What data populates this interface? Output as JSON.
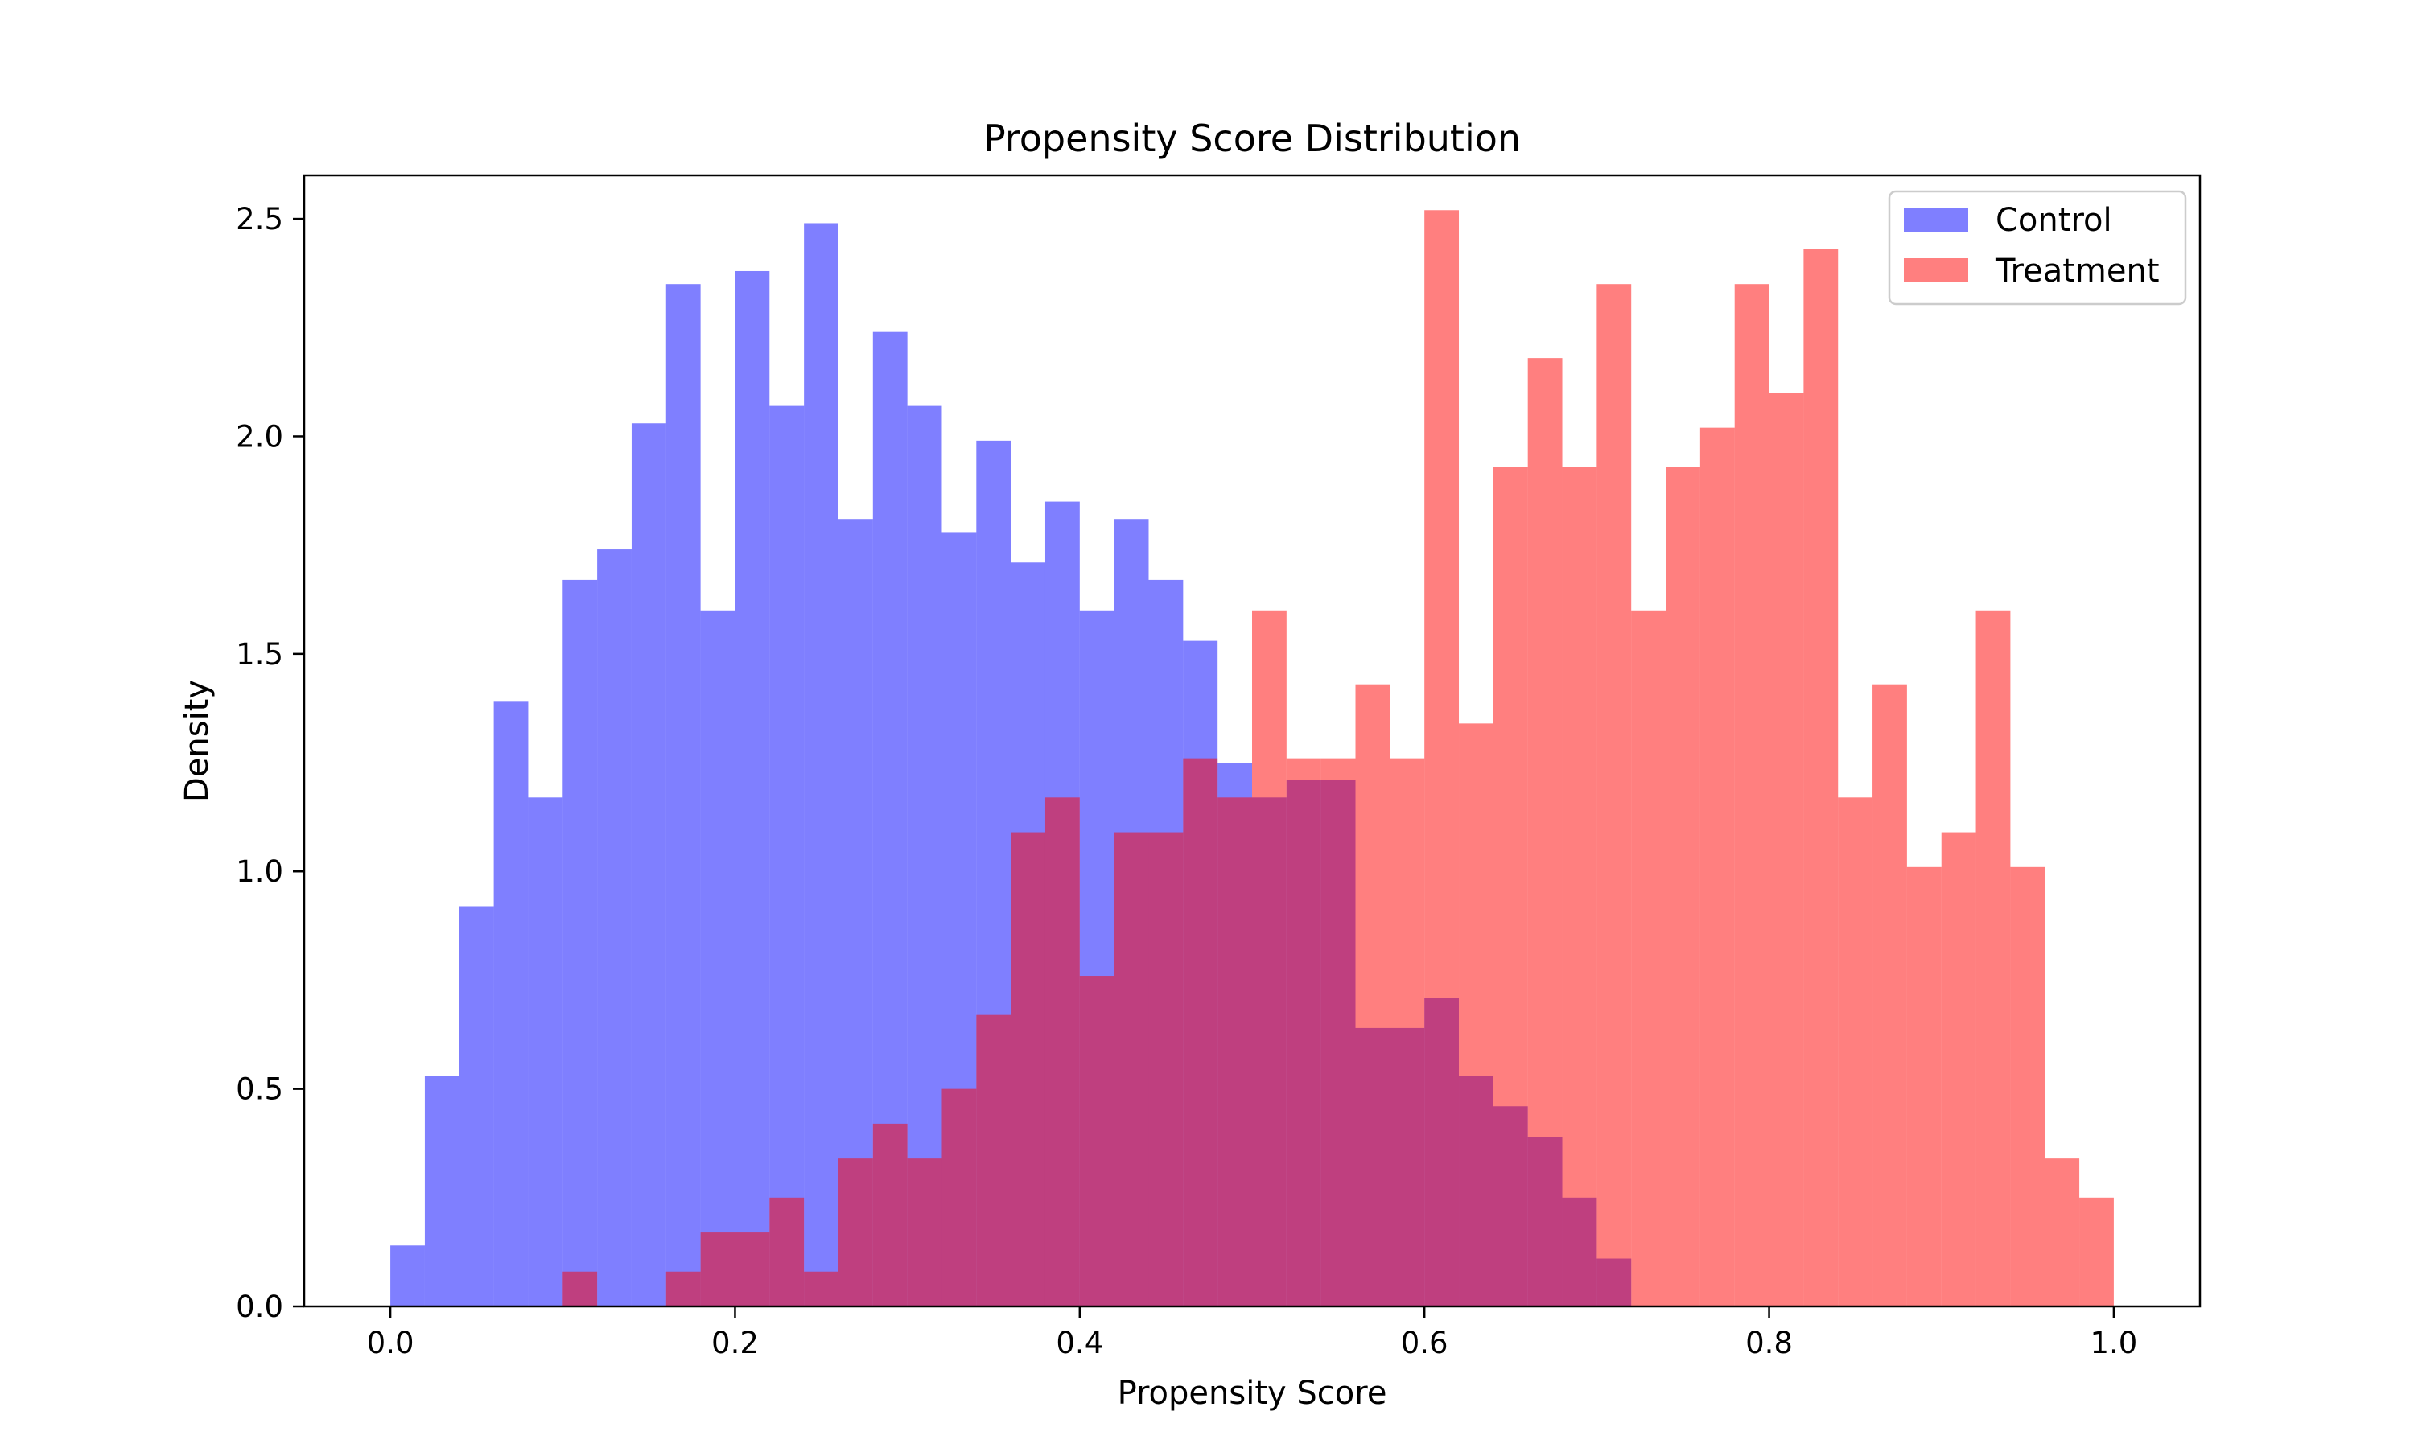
{
  "chart_data": {
    "type": "bar",
    "title": "Propensity Score Distribution",
    "xlabel": "Propensity Score",
    "ylabel": "Density",
    "xlim": [
      -0.05,
      1.05
    ],
    "ylim": [
      0,
      2.6
    ],
    "xticks": [
      "0.0",
      "0.2",
      "0.4",
      "0.6",
      "0.8",
      "1.0"
    ],
    "yticks": [
      "0.0",
      "0.5",
      "1.0",
      "1.5",
      "2.0",
      "2.5"
    ],
    "bin_width": 0.02,
    "legend_position": "top-right",
    "series": [
      {
        "name": "Control",
        "color": "#0000ff",
        "opacity": 0.5,
        "x": [
          0.0,
          0.02,
          0.04,
          0.06,
          0.08,
          0.1,
          0.12,
          0.14,
          0.16,
          0.18,
          0.2,
          0.22,
          0.24,
          0.26,
          0.28,
          0.3,
          0.32,
          0.34,
          0.36,
          0.38,
          0.4,
          0.42,
          0.44,
          0.46,
          0.48,
          0.5,
          0.52,
          0.54,
          0.56,
          0.58,
          0.6,
          0.62,
          0.64,
          0.66,
          0.68,
          0.7
        ],
        "values": [
          0.14,
          0.53,
          0.92,
          1.39,
          1.17,
          1.67,
          1.74,
          2.03,
          2.35,
          1.6,
          2.38,
          2.07,
          2.49,
          1.81,
          2.24,
          2.07,
          1.78,
          1.99,
          1.71,
          1.85,
          1.6,
          1.81,
          1.67,
          1.53,
          1.25,
          1.17,
          1.21,
          1.21,
          0.64,
          0.64,
          0.71,
          0.53,
          0.46,
          0.39,
          0.25,
          0.11
        ]
      },
      {
        "name": "Treatment",
        "color": "#ff0000",
        "opacity": 0.5,
        "x": [
          0.1,
          0.12,
          0.14,
          0.16,
          0.18,
          0.2,
          0.22,
          0.24,
          0.26,
          0.28,
          0.3,
          0.32,
          0.34,
          0.36,
          0.38,
          0.4,
          0.42,
          0.44,
          0.46,
          0.48,
          0.5,
          0.52,
          0.54,
          0.56,
          0.58,
          0.6,
          0.62,
          0.64,
          0.66,
          0.68,
          0.7,
          0.72,
          0.74,
          0.76,
          0.78,
          0.8,
          0.82,
          0.84,
          0.86,
          0.88,
          0.9,
          0.92,
          0.94,
          0.96,
          0.98
        ],
        "values": [
          0.08,
          0.0,
          0.0,
          0.08,
          0.17,
          0.17,
          0.25,
          0.08,
          0.34,
          0.42,
          0.34,
          0.5,
          0.67,
          1.09,
          1.17,
          0.76,
          1.09,
          1.09,
          1.26,
          1.17,
          1.6,
          1.26,
          1.26,
          1.43,
          1.26,
          2.52,
          1.34,
          1.93,
          2.18,
          1.93,
          2.35,
          1.6,
          1.93,
          2.02,
          2.35,
          2.1,
          2.43,
          1.17,
          1.43,
          1.01,
          1.09,
          1.6,
          1.01,
          0.34,
          0.25
        ]
      }
    ]
  }
}
